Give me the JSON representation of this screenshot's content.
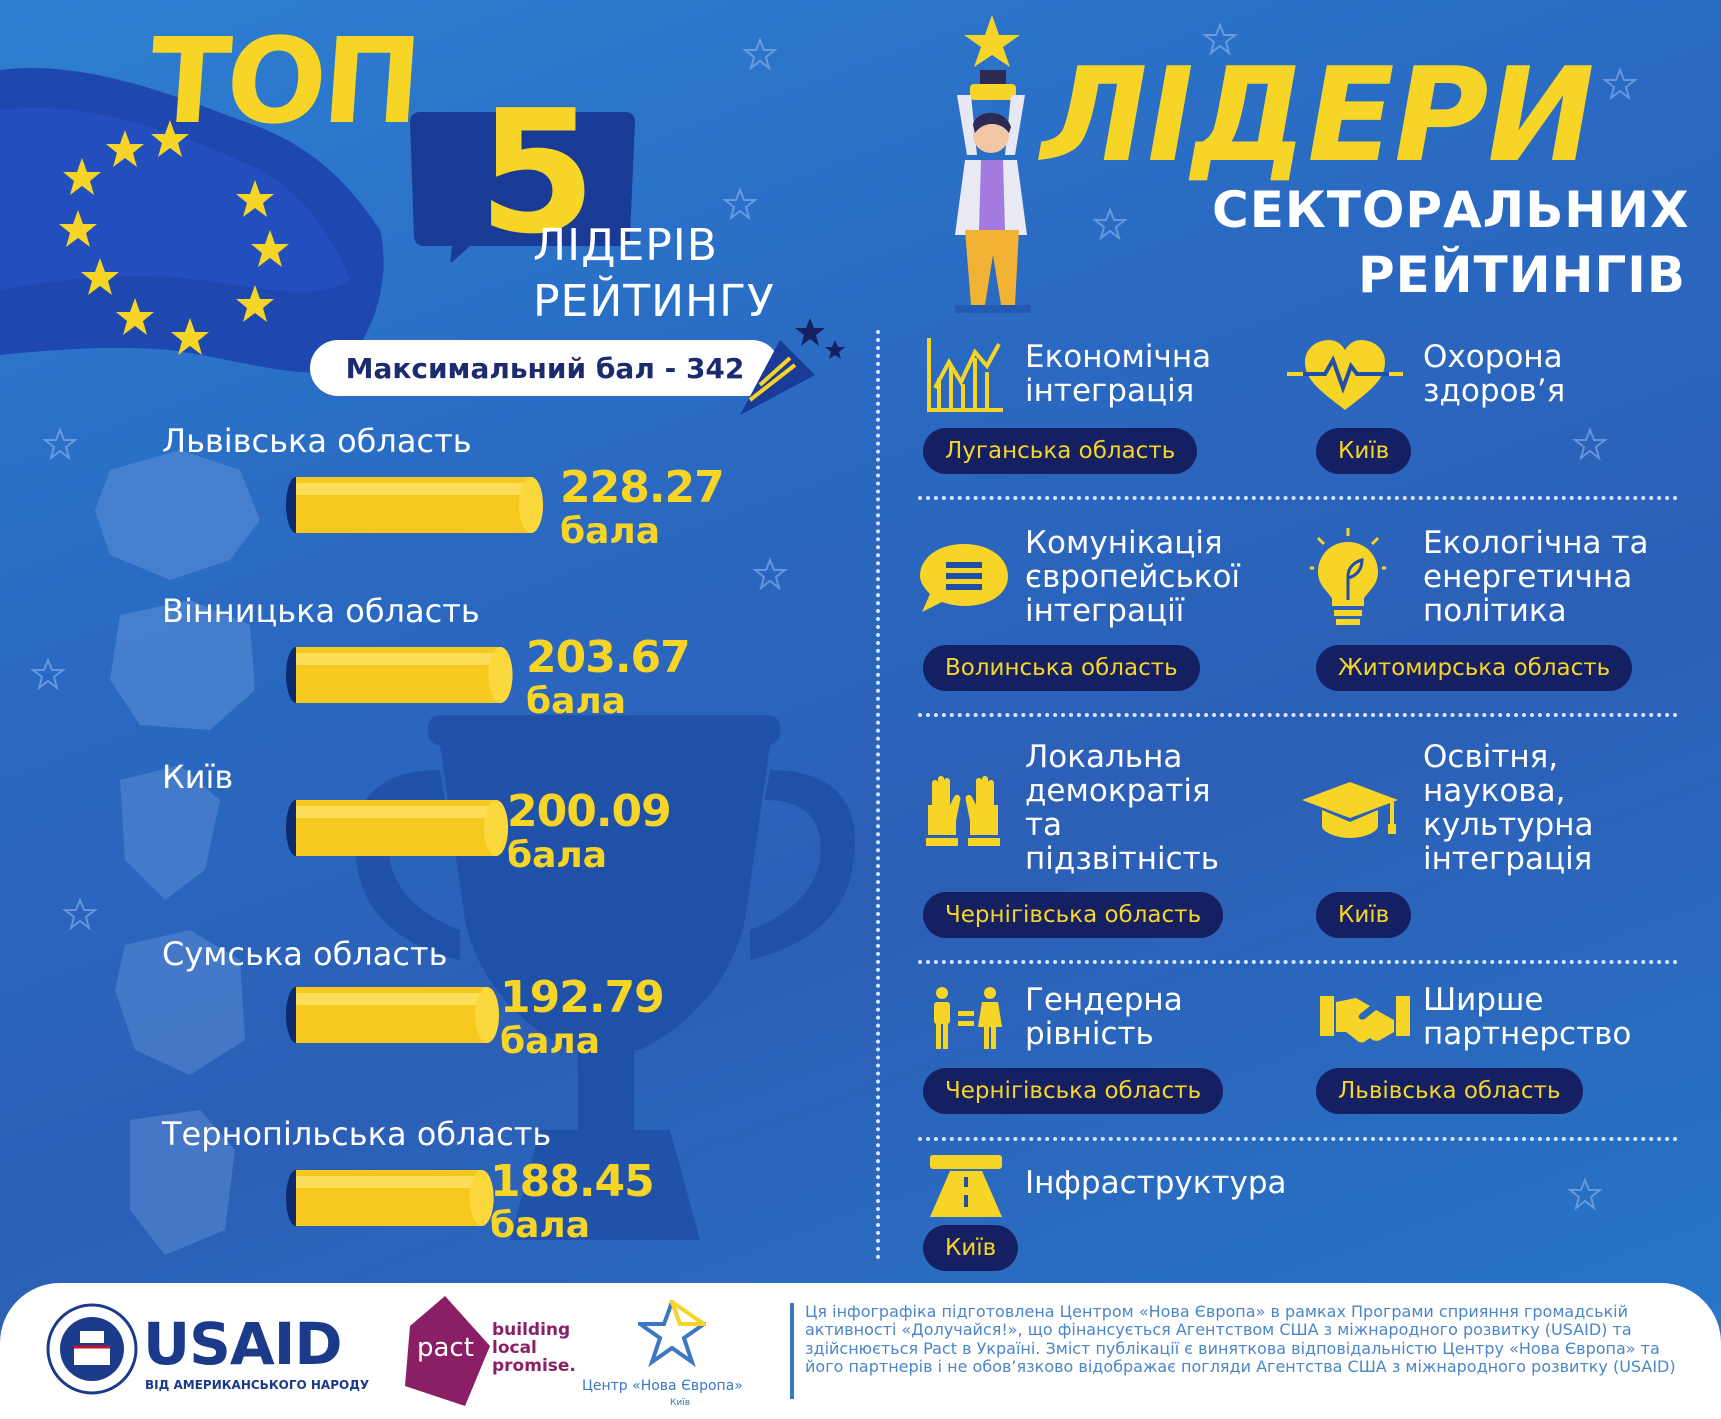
{
  "header": {
    "top": "ТОП",
    "five": "5",
    "leaders_line1": "ЛІДЕРІВ",
    "leaders_line2": "РЕЙТИНГУ",
    "max_score": "Максимальний бал - 342",
    "right_title": "ЛІДЕРИ",
    "right_sub1": "СЕКТОРАЛЬНИХ",
    "right_sub2": "РЕЙТИНГІВ"
  },
  "chart_data": {
    "type": "bar",
    "orientation": "horizontal",
    "title": "ТОП 5 ЛІДЕРІВ РЕЙТИНГУ",
    "categories": [
      "Львівська область",
      "Вінницька область",
      "Київ",
      "Сумська область",
      "Тернопільська область"
    ],
    "values": [
      228.27,
      203.67,
      200.09,
      192.79,
      188.45
    ],
    "value_labels": [
      "228.27",
      "203.67",
      "200.09",
      "192.79",
      "188.45"
    ],
    "unit": "бала",
    "xlim": [
      0,
      342
    ],
    "grid": false,
    "legend": "none"
  },
  "sectors": [
    {
      "name": "Економічна\nінтеграція",
      "winner": "Луганська область",
      "icon": "chart-growth-icon"
    },
    {
      "name": "Охорона\nздоров’я",
      "winner": "Київ",
      "icon": "heart-pulse-icon"
    },
    {
      "name": "Комунікація\nєвропейської\nінтеграції",
      "winner": "Волинська область",
      "icon": "chat-bubble-icon"
    },
    {
      "name": "Екологічна та\nенергетична\nполітика",
      "winner": "Житомирська область",
      "icon": "eco-bulb-icon"
    },
    {
      "name": "Локальна\nдемократія\nта\nпідзвітність",
      "winner": "Чернігівська область",
      "icon": "raised-hands-icon"
    },
    {
      "name": "Освітня,\nнаукова,\nкультурна\nінтеграція",
      "winner": "Київ",
      "icon": "graduation-cap-icon"
    },
    {
      "name": "Гендерна\nрівність",
      "winner": "Чернігівська область",
      "icon": "gender-equality-icon"
    },
    {
      "name": "Ширше\nпартнерство",
      "winner": "Львівська область",
      "icon": "handshake-icon"
    },
    {
      "name": "Інфраструктура",
      "winner": "Київ",
      "icon": "road-icon"
    }
  ],
  "footer": {
    "usaid": "USAID",
    "usaid_sub": "ВІД АМЕРИКАНСЬКОГО НАРОДУ",
    "pact": "pact",
    "pact_tag": "building\nlocal\npromise.",
    "ne": "Центр «Нова Європа»",
    "ne_sub": "Київ",
    "disclaimer": "Ця інфографіка підготовлена Центром «Нова Європа» в рамках Програми сприяння громадській активності «Долучайся!», що фінансується Агентством США з міжнародного розвитку (USAID) та здійснюється Pact в Україні. Зміст публікації є виняткова відповідальністю Центру «Нова Європа» та його партнерів і не обов’язково відображає погляди Агентства США з міжнародного розвитку (USAID)"
  },
  "colors": {
    "yellow": "#f7d526",
    "navy": "#152063",
    "blue": "#2a6cc4"
  }
}
